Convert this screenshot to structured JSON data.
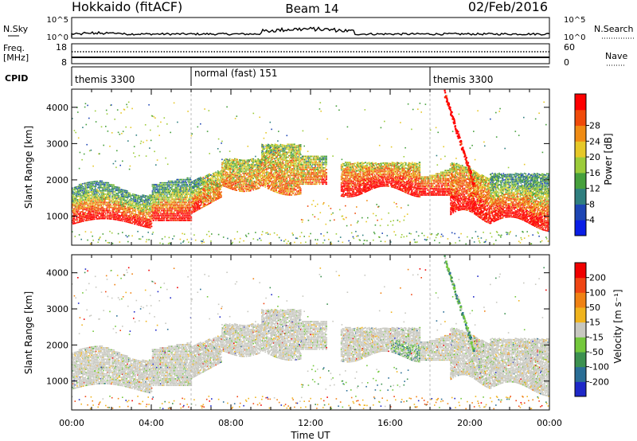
{
  "header": {
    "station": "Hokkaido (fitACF)",
    "beam": "Beam 14",
    "date": "02/Feb/2016"
  },
  "top_panels": {
    "nsky_label": "N.Sky",
    "nsky_ticks": [
      "10^5",
      "10^0"
    ],
    "nsearch_label": "N.Search",
    "nsearch_ticks": [
      "10^5",
      "10^0"
    ],
    "freq_label": "Freq.",
    "freq_unit": "[MHz]",
    "freq_ticks": [
      "18",
      "8"
    ],
    "nave_label": "Nave",
    "nave_ticks": [
      "60",
      "0"
    ],
    "cpid_label": "CPID",
    "cpid_segments": [
      {
        "label": "themis 3300",
        "start": 0
      },
      {
        "label": "normal (fast) 151",
        "start": 6
      },
      {
        "label": "themis 3300",
        "start": 18
      }
    ]
  },
  "chart_data": [
    {
      "type": "heatmap",
      "name": "power",
      "xlabel": "",
      "ylabel": "Slant Range [km]",
      "xlim": [
        0,
        24
      ],
      "ylim": [
        200,
        4500
      ],
      "yticks": [
        1000,
        2000,
        3000,
        4000
      ],
      "colorbar": {
        "label": "Power [dB]",
        "ticks": [
          "4",
          "8",
          "12",
          "16",
          "20",
          "24",
          "28"
        ],
        "colors": [
          "#0a1ee6",
          "#1e46b4",
          "#2f7f7f",
          "#46a03c",
          "#9ccc3a",
          "#e6c828",
          "#f08c14",
          "#f04b0a",
          "#ff0000"
        ]
      }
    },
    {
      "type": "heatmap",
      "name": "velocity",
      "xlabel": "Time UT",
      "ylabel": "Slant Range [km]",
      "xlim": [
        0,
        24
      ],
      "ylim": [
        200,
        4500
      ],
      "yticks": [
        1000,
        2000,
        3000,
        4000
      ],
      "xticks": [
        "00:00",
        "04:00",
        "08:00",
        "12:00",
        "16:00",
        "20:00",
        "00:00"
      ],
      "colorbar": {
        "label": "Velocity [m s⁻¹]",
        "ticks": [
          "200",
          "100",
          "50",
          "15",
          "-15",
          "-50",
          "-100",
          "-200"
        ],
        "colors": [
          "#1e28c8",
          "#2a6e96",
          "#3c9150",
          "#74c83c",
          "#c8c8c0",
          "#f0b41e",
          "#f08214",
          "#f04614",
          "#f00000"
        ]
      }
    }
  ]
}
